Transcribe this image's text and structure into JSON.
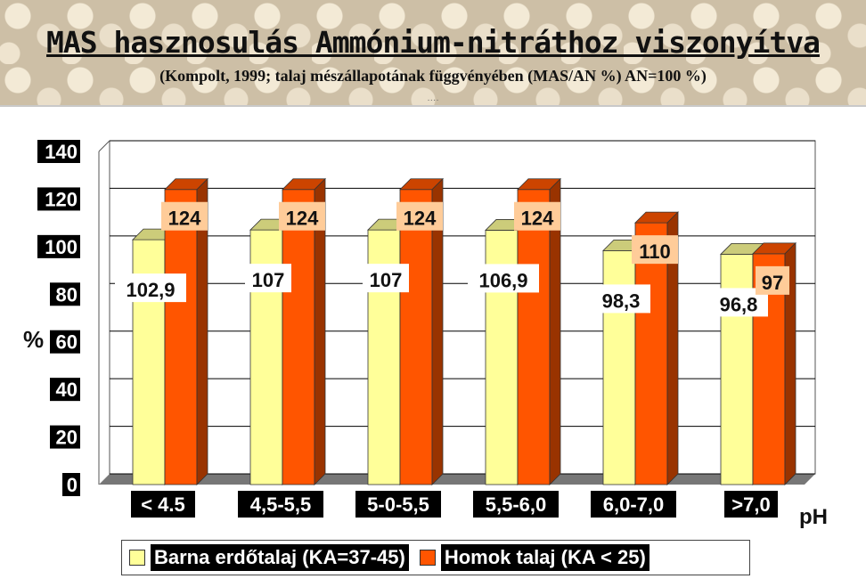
{
  "header": {
    "title": "MAS hasznosulás Ammónium-nitráthoz viszonyítva",
    "subtitle": "(Kompolt, 1999; talaj mészállapotának függvényében (MAS/AN %) AN=100 %)"
  },
  "chart_data": {
    "type": "bar",
    "categories": [
      "< 4.5",
      "4,5-5,5",
      "5-0-5,5",
      "5,5-6,0",
      "6,0-7,0",
      ">7,0"
    ],
    "series": [
      {
        "name": "Barna erdőtalaj (KA=37-45)",
        "values": [
          102.9,
          107,
          107,
          106.9,
          98.3,
          96.8
        ],
        "labels": [
          "102,9",
          "107",
          "107",
          "106,9",
          "98,3",
          "96,8"
        ],
        "color": "#ffff99"
      },
      {
        "name": "Homok talaj (KA < 25)",
        "values": [
          124,
          124,
          124,
          124,
          110,
          97
        ],
        "labels": [
          "124",
          "124",
          "124",
          "124",
          "110",
          "97"
        ],
        "color": "#ff5500"
      }
    ],
    "xlabel": "pH",
    "ylabel": "%",
    "ylim": [
      0,
      140
    ],
    "yticks": [
      0,
      20,
      40,
      60,
      80,
      100,
      120,
      140
    ],
    "grid": true,
    "legend_position": "bottom",
    "style": "3d"
  }
}
